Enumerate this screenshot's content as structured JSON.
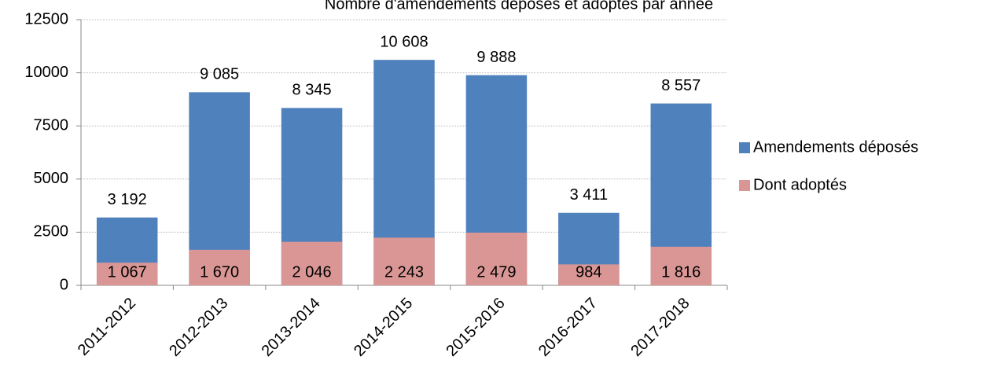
{
  "chart_data": {
    "type": "bar",
    "title": "Nombre d'amendements déposés et adoptés par année",
    "categories": [
      "2011-2012",
      "2012-2013",
      "2013-2014",
      "2014-2015",
      "2015-2016",
      "2016-2017",
      "2017-2018"
    ],
    "series": [
      {
        "name": "Amendements déposés",
        "color": "#4f81bd",
        "values": [
          3192,
          9085,
          8345,
          10608,
          9888,
          3411,
          8557
        ],
        "value_labels": [
          "3 192",
          "9 085",
          "8 345",
          "10 608",
          "9 888",
          "3 411",
          "8 557"
        ]
      },
      {
        "name": "Dont adoptés",
        "color": "#d99694",
        "values": [
          1067,
          1670,
          2046,
          2243,
          2479,
          984,
          1816
        ],
        "value_labels": [
          "1 067",
          "1 670",
          "2 046",
          "2 243",
          "2 479",
          "984",
          "1 816"
        ]
      }
    ],
    "ylim": [
      0,
      12500
    ],
    "yticks": [
      0,
      2500,
      5000,
      7500,
      10000,
      12500
    ],
    "grid": true,
    "legend": "right"
  }
}
